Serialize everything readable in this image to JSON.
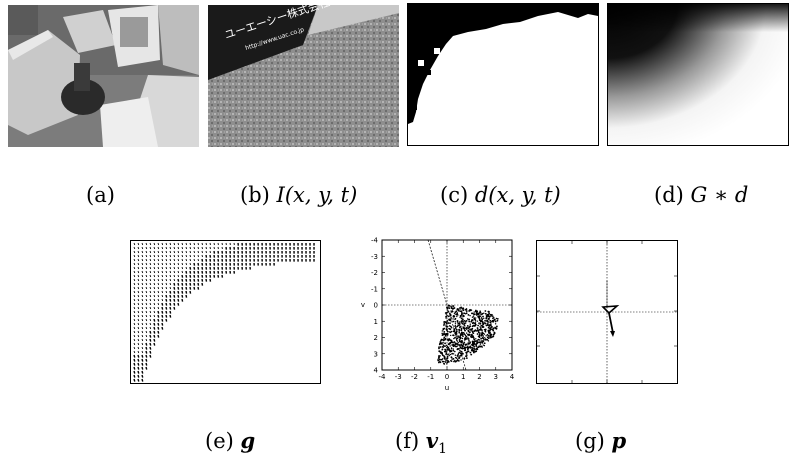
{
  "figure": {
    "captions": {
      "a": {
        "letter": "(a)",
        "math": ""
      },
      "b": {
        "letter": "(b)",
        "math": "I(x, y, t)"
      },
      "c": {
        "letter": "(c)",
        "math": "d(x, y, t)"
      },
      "d": {
        "letter": "(d)",
        "math": "G ∗ d"
      },
      "e": {
        "letter": "(e)",
        "math": "g"
      },
      "f": {
        "letter": "(f)",
        "math": "v",
        "sub": "1"
      },
      "g": {
        "letter": "(g)",
        "math": "p"
      }
    },
    "sign": {
      "line1": "ユーエーシー株式会社",
      "line2": "http://www.uac.co.jp"
    },
    "plot_f": {
      "xlabel": "u",
      "ylabel": "v",
      "xticks": [
        "-4",
        "-3",
        "-2",
        "-1",
        "0",
        "1",
        "2",
        "3",
        "4"
      ],
      "yticks": [
        "-4",
        "-3",
        "-2",
        "-1",
        "0",
        "1",
        "2",
        "3",
        "4"
      ]
    }
  }
}
